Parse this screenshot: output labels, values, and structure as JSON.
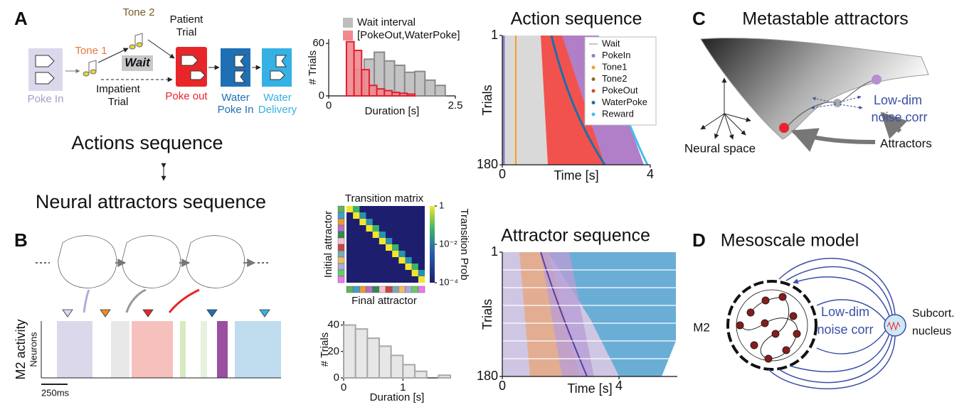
{
  "panel_labels": [
    "A",
    "B",
    "C",
    "D"
  ],
  "task": {
    "tone2": "Tone 2",
    "patient": [
      "Patient",
      "Trial"
    ],
    "tone1": "Tone 1",
    "wait": "Wait",
    "poke_in": "Poke In",
    "impatient": [
      "Impatient",
      "Trial"
    ],
    "poke_out": "Poke out",
    "water_poke_in": [
      "Water",
      "Poke In"
    ],
    "water_delivery": [
      "Water",
      "Delivery"
    ]
  },
  "actions_sequence": "Actions sequence",
  "neural_attractors_sequence": "Neural attractors sequence",
  "panel_b": {
    "ylabel": "M2 activity",
    "neurons": "Neurons",
    "scale_bar": "250ms"
  },
  "panel_c": {
    "title": "Metastable attractors",
    "noise": [
      "Low-dim",
      "noise corr"
    ],
    "neural_space": "Neural space",
    "attractors": "Attractors"
  },
  "panel_d": {
    "title": "Mesoscale model",
    "m2": "M2",
    "noise": [
      "Low-dim",
      "noise corr"
    ],
    "nucleus": [
      "Subcort.",
      "nucleus"
    ]
  },
  "chart_data": [
    {
      "type": "histogram",
      "ylabel": "# Trials",
      "xlabel": "Duration   [s]",
      "xlim": [
        0,
        2.5
      ],
      "xticks": [
        0,
        2.5
      ],
      "ylim": [
        0,
        65
      ],
      "yticks": [
        0,
        60
      ],
      "series": [
        {
          "name": "Wait interval",
          "color": "#bdbdbd",
          "edge": "#8a8a8a",
          "bins": [
            0.5,
            0.7,
            0.9,
            1.1,
            1.3,
            1.5,
            1.7,
            1.9,
            2.1,
            2.3
          ],
          "values": [
            30,
            42,
            50,
            40,
            35,
            27,
            28,
            18,
            12
          ]
        },
        {
          "name": "[PokeOut,WaterPoke]",
          "color": "#f08a8f",
          "edge": "#e02030",
          "bins": [
            0.35,
            0.5,
            0.65,
            0.8,
            0.95,
            1.1,
            1.25,
            1.4,
            1.55,
            1.7
          ],
          "values": [
            62,
            52,
            30,
            12,
            8,
            6,
            4,
            3,
            2
          ]
        }
      ]
    },
    {
      "type": "raster",
      "title": "Action sequence",
      "ylabel": "Trials",
      "xlabel": "Time [s]",
      "xlim": [
        0,
        4
      ],
      "xticks": [
        0,
        4
      ],
      "ylim": [
        1,
        180
      ],
      "yticks": [
        1,
        180
      ],
      "y_reversed": true,
      "series": [
        {
          "name": "Wait",
          "color": "#b0b0b0"
        },
        {
          "name": "PokeIn",
          "color": "#8e7cc3"
        },
        {
          "name": "Tone1",
          "color": "#f0a020"
        },
        {
          "name": "Tone2",
          "color": "#8a6a2a"
        },
        {
          "name": "PokeOut",
          "color": "#d44a2a"
        },
        {
          "name": "WaterPoke",
          "color": "#1c6fa8"
        },
        {
          "name": "Reward",
          "color": "#42c0ee"
        }
      ]
    },
    {
      "type": "heatmap",
      "title": "Transition matrix",
      "ylabel": "Initial attractor",
      "xlabel": "Final attractor",
      "colorbar": {
        "label": "Transition Prob",
        "log": true,
        "lim": [
          0.0001,
          1
        ],
        "ticks": [
          1,
          {
            "value": 0.01,
            "label": "10⁻²"
          },
          {
            "value": 0.0001,
            "label": "10⁻⁴"
          }
        ]
      }
    },
    {
      "type": "histogram",
      "ylabel": "# Trials",
      "xlabel": "Duration [s]",
      "xlim": [
        0,
        1.8
      ],
      "xticks": [
        0,
        1
      ],
      "ylim": [
        0,
        43
      ],
      "yticks": [
        0,
        20,
        40
      ],
      "series": [
        {
          "color": "#e4e4e4",
          "edge": "#a8a8a8",
          "bins": [
            0,
            0.2,
            0.4,
            0.6,
            0.8,
            1.0,
            1.2,
            1.4,
            1.6,
            1.8
          ],
          "values": [
            40,
            37,
            30,
            24,
            17,
            10,
            5,
            0,
            2
          ]
        }
      ]
    },
    {
      "type": "raster",
      "title": "Attractor sequence",
      "ylabel": "Trials",
      "xlabel": "Time [s]",
      "xlim": [
        0,
        6
      ],
      "xticks": [
        0,
        4
      ],
      "ylim": [
        1,
        180
      ],
      "yticks": [
        1,
        180
      ],
      "y_reversed": true
    }
  ]
}
